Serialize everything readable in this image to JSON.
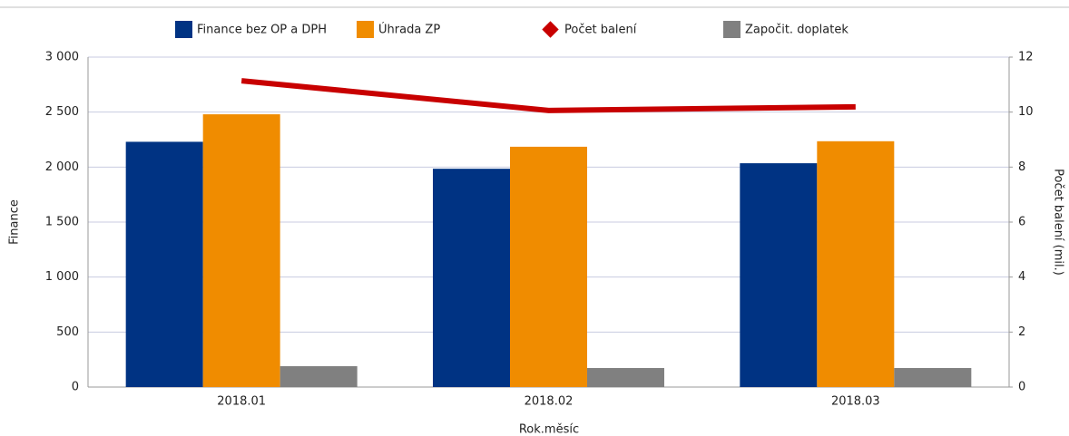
{
  "chart_data": {
    "type": "bar",
    "categories": [
      "2018.01",
      "2018.02",
      "2018.03"
    ],
    "series": [
      {
        "name": "Finance bez OP a DPH",
        "color": "#003383",
        "type": "bar",
        "values": [
          2230,
          1985,
          2035
        ]
      },
      {
        "name": "Úhrada ZP",
        "color": "#f08c00",
        "type": "bar",
        "values": [
          2480,
          2185,
          2235
        ]
      },
      {
        "name": "Počet balení",
        "color": "#c80000",
        "type": "line",
        "axis": "y2",
        "values": [
          11.14,
          10.06,
          10.19
        ]
      },
      {
        "name": "Započit. doplatek",
        "color": "#808080",
        "type": "bar",
        "values": [
          190,
          173,
          173
        ]
      }
    ],
    "ylim": [
      0,
      3000
    ],
    "yticks": [
      0,
      500,
      {
        "value": 1000,
        "label": "1 000"
      },
      {
        "value": 1500,
        "label": "1 500"
      },
      {
        "value": 2000,
        "label": "2 000"
      },
      {
        "value": 2500,
        "label": "2 500"
      },
      {
        "value": 3000,
        "label": "3 000"
      }
    ],
    "y2lim": [
      0,
      12
    ],
    "y2ticks": [
      0,
      2,
      4,
      6,
      8,
      10,
      12
    ],
    "ylabel": "Finance",
    "y2label": "Počet balení (mil.)",
    "xlabel": "Rok.měsíc",
    "grid": true
  }
}
